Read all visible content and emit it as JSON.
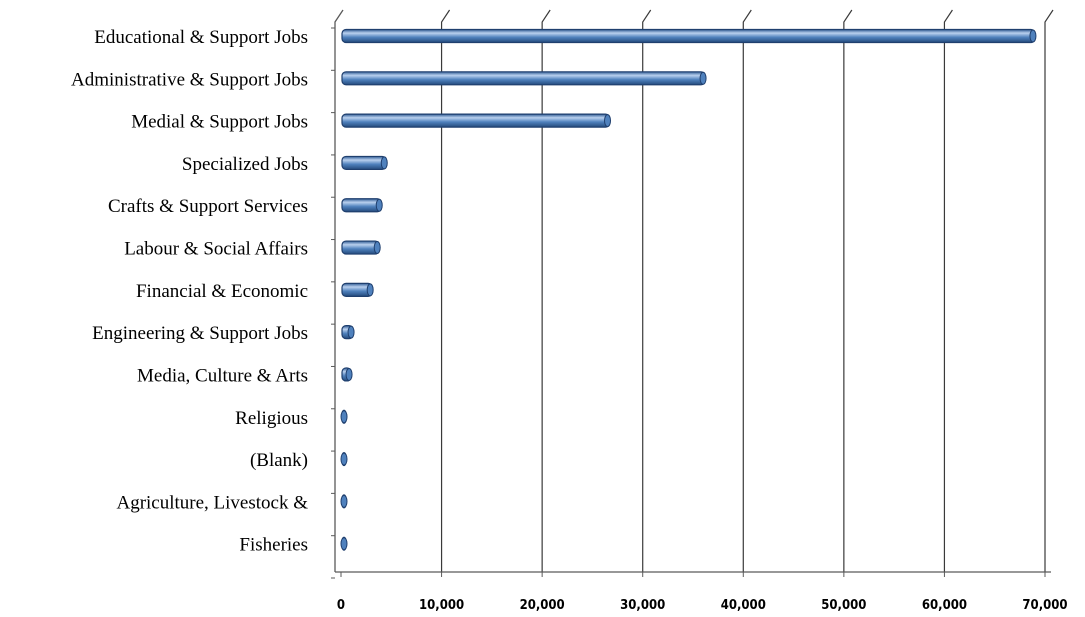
{
  "chart_data": {
    "type": "bar",
    "orientation": "horizontal",
    "categories": [
      "Educational & Support Jobs",
      "Administrative & Support Jobs",
      "Medial & Support Jobs",
      "Specialized Jobs",
      "Crafts & Support Services",
      "Labour & Social Affairs",
      "Financial & Economic",
      "Engineering & Support Jobs",
      "Media, Culture & Arts",
      "Religious",
      "(Blank)",
      "Agriculture, Livestock &",
      "Fisheries"
    ],
    "values": [
      69000,
      36200,
      26700,
      4500,
      4000,
      3800,
      3100,
      1200,
      1000,
      500,
      450,
      400,
      300
    ],
    "xlim": [
      0,
      70000
    ],
    "xticks": [
      0,
      10000,
      20000,
      30000,
      40000,
      50000,
      60000,
      70000
    ],
    "xtick_labels": [
      "0",
      "10,000",
      "20,000",
      "30,000",
      "40,000",
      "50,000",
      "60,000",
      "70,000"
    ],
    "title": "",
    "xlabel": "",
    "ylabel": "",
    "grid": "vertical",
    "legend": "none",
    "bar_color": "#4f81bd",
    "bar_edge_color": "#1f3f6e",
    "bar_highlight_color": "#b9d0ee"
  }
}
